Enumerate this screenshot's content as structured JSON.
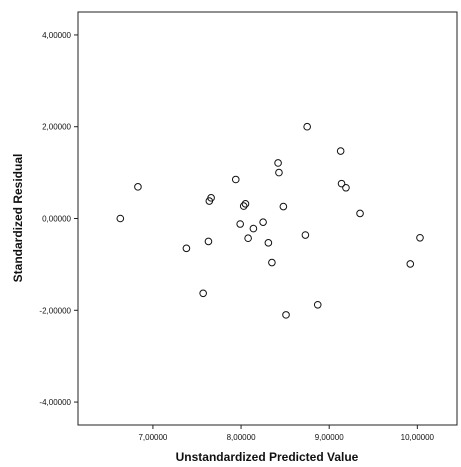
{
  "chart_data": {
    "type": "scatter",
    "title": "",
    "xlabel": "Unstandardized Predicted Value",
    "ylabel": "Standardized Residual",
    "xlim": [
      6.15,
      10.45
    ],
    "ylim": [
      -4.5,
      4.5
    ],
    "x_ticks": [
      {
        "value": 7,
        "label": "7,00000"
      },
      {
        "value": 8,
        "label": "8,00000"
      },
      {
        "value": 9,
        "label": "9,00000"
      },
      {
        "value": 10,
        "label": "10,00000"
      }
    ],
    "y_ticks": [
      {
        "value": 4,
        "label": "4,00000"
      },
      {
        "value": 2,
        "label": "2,00000"
      },
      {
        "value": 0,
        "label": "0,00000"
      },
      {
        "value": -2,
        "label": "-2,00000"
      },
      {
        "value": -4,
        "label": "-4,00000"
      }
    ],
    "grid": false,
    "legend": "none",
    "colors": {
      "marker_stroke": "#111111",
      "axis": "#222222",
      "background": "#ffffff"
    },
    "series": [
      {
        "x": [
          6.63,
          6.83,
          7.38,
          7.57,
          7.63,
          7.64,
          7.66,
          7.94,
          7.99,
          8.03,
          8.05,
          8.08,
          8.14,
          8.25,
          8.31,
          8.35,
          8.42,
          8.43,
          8.48,
          8.51,
          8.73,
          8.75,
          8.87,
          9.13,
          9.14,
          9.19,
          9.35,
          9.92,
          10.03
        ],
        "y": [
          0.0,
          0.69,
          -0.65,
          -1.63,
          -0.5,
          0.38,
          0.45,
          0.85,
          -0.12,
          0.27,
          0.32,
          -0.43,
          -0.22,
          -0.08,
          -0.53,
          -0.96,
          1.21,
          1.0,
          0.26,
          -2.1,
          -0.36,
          2.0,
          -1.88,
          1.47,
          0.76,
          0.67,
          0.11,
          -0.99,
          -0.42
        ]
      }
    ]
  }
}
